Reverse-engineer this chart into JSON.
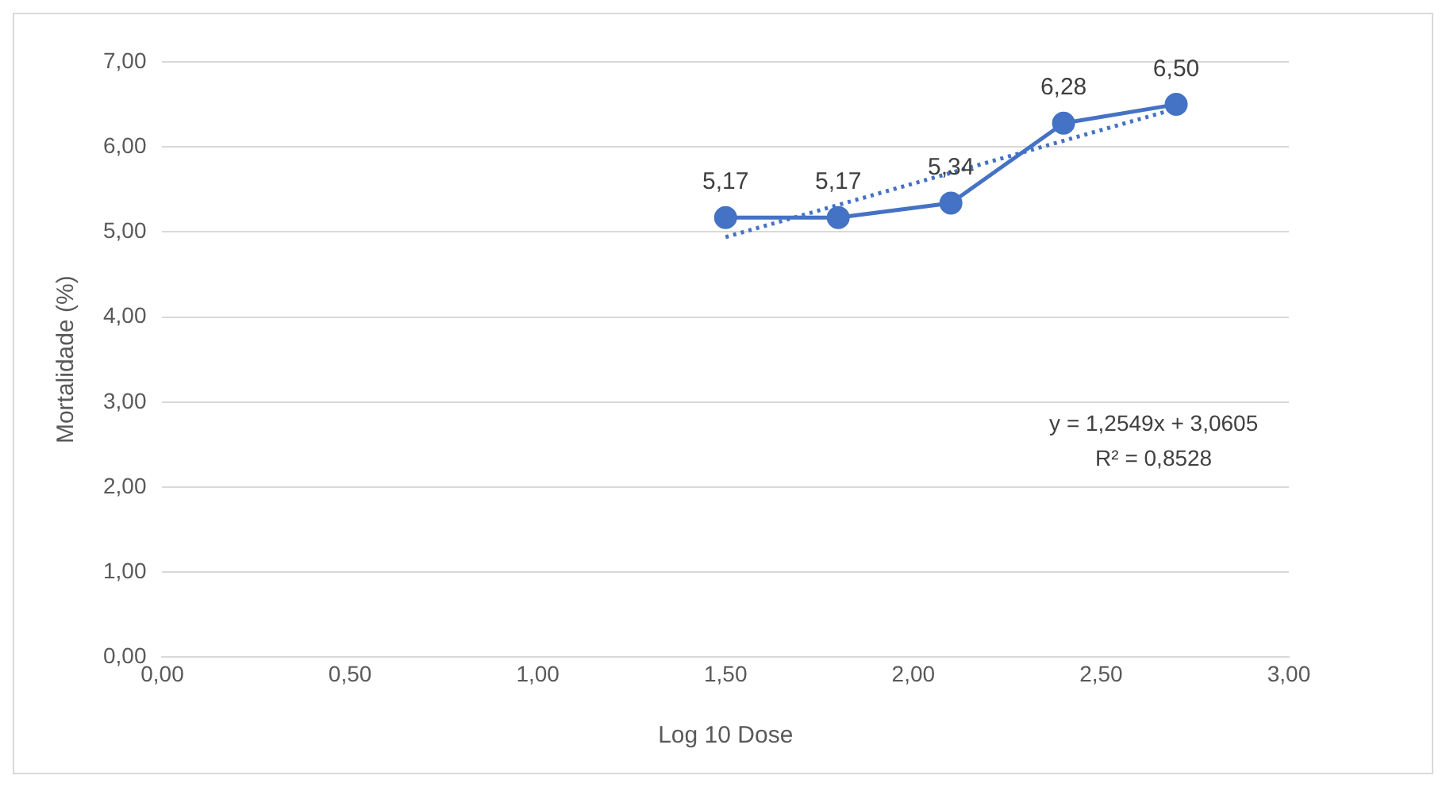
{
  "chart_data": {
    "type": "line",
    "xlabel": "Log 10 Dose",
    "ylabel": "Mortalidade (%)",
    "x": [
      1.5,
      1.8,
      2.1,
      2.4,
      2.7
    ],
    "series": [
      {
        "color": "#4472c4",
        "values": [
          5.17,
          5.17,
          5.34,
          6.28,
          6.5
        ],
        "value_labels": [
          "5,17",
          "5,17",
          "5,34",
          "6,28",
          "6,50"
        ],
        "marker": "circle",
        "line_style": "solid"
      },
      {
        "type": "line",
        "color": "#4472c4",
        "x": [
          1.5,
          2.7
        ],
        "values": [
          4.94,
          6.45
        ],
        "marker": "none",
        "line_style": "dotted"
      }
    ],
    "xlim": [
      0,
      3
    ],
    "xticks": [
      {
        "value": 0,
        "label": "0,00"
      },
      {
        "value": 0.5,
        "label": "0,50"
      },
      {
        "value": 1,
        "label": "1,00"
      },
      {
        "value": 1.5,
        "label": "1,50"
      },
      {
        "value": 2,
        "label": "2,00"
      },
      {
        "value": 2.5,
        "label": "2,50"
      },
      {
        "value": 3,
        "label": "3,00"
      }
    ],
    "ylim": [
      0,
      7
    ],
    "yticks": [
      {
        "value": 0,
        "label": "0,00"
      },
      {
        "value": 1,
        "label": "1,00"
      },
      {
        "value": 2,
        "label": "2,00"
      },
      {
        "value": 3,
        "label": "3,00"
      },
      {
        "value": 4,
        "label": "4,00"
      },
      {
        "value": 5,
        "label": "5,00"
      },
      {
        "value": 6,
        "label": "6,00"
      },
      {
        "value": 7,
        "label": "7,00"
      }
    ],
    "grid": "y",
    "legend": false,
    "annotations": [
      "y = 1,2549x + 3,0605",
      "R² = 0,8528"
    ]
  }
}
